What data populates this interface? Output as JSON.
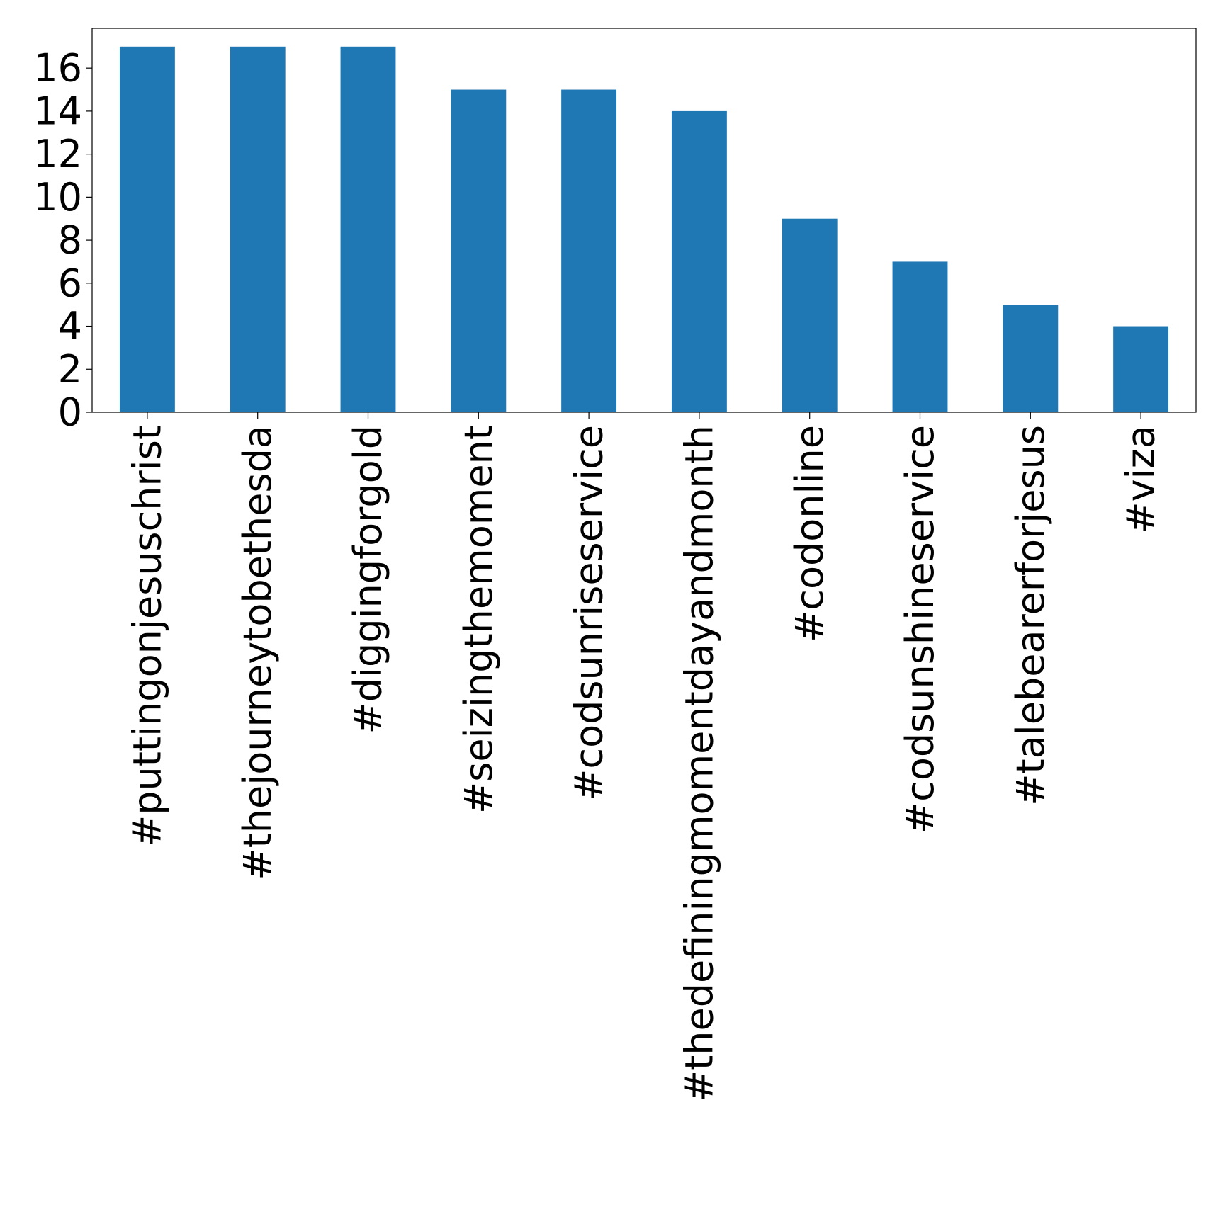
{
  "chart_data": {
    "type": "bar",
    "title": "",
    "xlabel": "",
    "ylabel": "",
    "categories": [
      "#puttingonjesuschrist",
      "#thejourneytobethesda",
      "#diggingforgold",
      "#seizingthemoment",
      "#codsunriseservice",
      "#thedefiningmomentdayandmonth",
      "#codonline",
      "#codsunshineservice",
      "#talebearerforjesus",
      "#viza"
    ],
    "values": [
      17,
      17,
      17,
      15,
      15,
      14,
      9,
      7,
      5,
      4
    ],
    "ylim": [
      0,
      17.85
    ],
    "yticks": [
      0,
      2,
      4,
      6,
      8,
      10,
      12,
      14,
      16
    ],
    "ytick_labels": [
      "0",
      "2",
      "4",
      "6",
      "8",
      "10",
      "12",
      "14",
      "16"
    ],
    "x_tick_rotation": "vertical",
    "grid": false,
    "legend": "none",
    "bar_color": "#1f77b4"
  }
}
